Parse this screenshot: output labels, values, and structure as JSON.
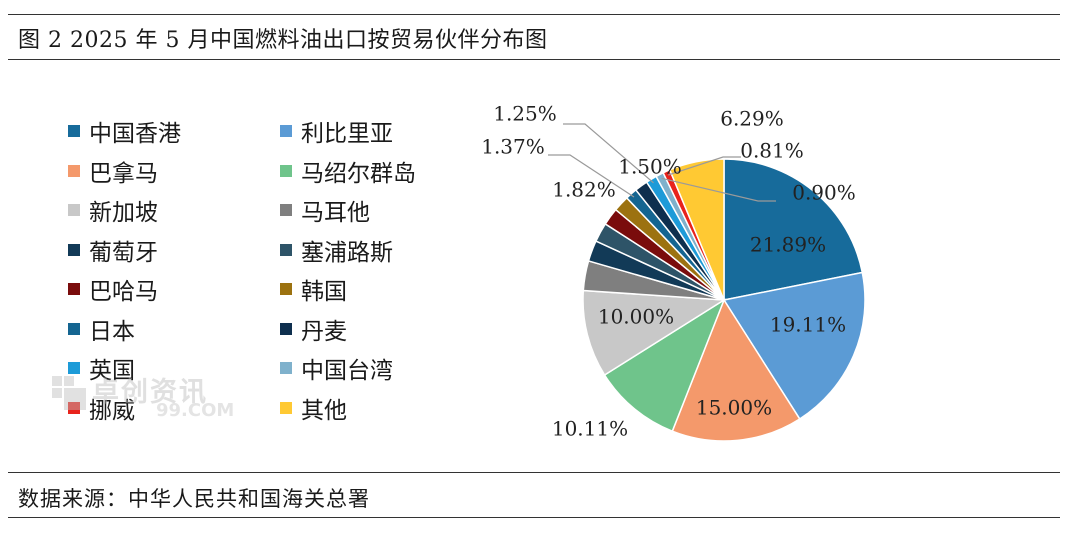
{
  "figure": {
    "title": "图 2 2025 年 5 月中国燃料油出口按贸易伙伴分布图",
    "source": "数据来源：中华人民共和国海关总署"
  },
  "watermark": {
    "text": "卓创资讯",
    "sub": "99.COM"
  },
  "chart_data": {
    "type": "pie",
    "title": "",
    "start_angle_deg": 0,
    "direction": "clockwise",
    "legend_position": "left",
    "slices": [
      {
        "name": "中国香港",
        "value": 21.89,
        "label": "21.89%",
        "color": "#176b9b"
      },
      {
        "name": "利比里亚",
        "value": 19.11,
        "label": "19.11%",
        "color": "#5b9bd5"
      },
      {
        "name": "巴拿马",
        "value": 15.0,
        "label": "15.00%",
        "color": "#f4996b"
      },
      {
        "name": "马绍尔群岛",
        "value": 10.11,
        "label": "10.11%",
        "color": "#6fc48b"
      },
      {
        "name": "新加坡",
        "value": 10.0,
        "label": "10.00%",
        "color": "#c8c8c8"
      },
      {
        "name": "马耳他",
        "value": 3.4,
        "label": "",
        "color": "#7f7f7f"
      },
      {
        "name": "葡萄牙",
        "value": 2.4,
        "label": "",
        "color": "#123a57"
      },
      {
        "name": "塞浦路斯",
        "value": 2.2,
        "label": "",
        "color": "#2e5468"
      },
      {
        "name": "巴哈马",
        "value": 2.0,
        "label": "",
        "color": "#7a0c0c"
      },
      {
        "name": "韩国",
        "value": 1.82,
        "label": "1.82%",
        "color": "#9c7210"
      },
      {
        "name": "日本",
        "value": 1.37,
        "label": "1.37%",
        "color": "#146591"
      },
      {
        "name": "丹麦",
        "value": 1.5,
        "label": "1.50%",
        "color": "#0e2f4e"
      },
      {
        "name": "英国",
        "value": 1.25,
        "label": "1.25%",
        "color": "#1d9bd8"
      },
      {
        "name": "中国台湾",
        "value": 0.9,
        "label": "0.90%",
        "color": "#7fb1cc"
      },
      {
        "name": "挪威",
        "value": 0.81,
        "label": "0.81%",
        "color": "#e8231c"
      },
      {
        "name": "其他",
        "value": 6.29,
        "label": "6.29%",
        "color": "#ffc933"
      }
    ]
  }
}
